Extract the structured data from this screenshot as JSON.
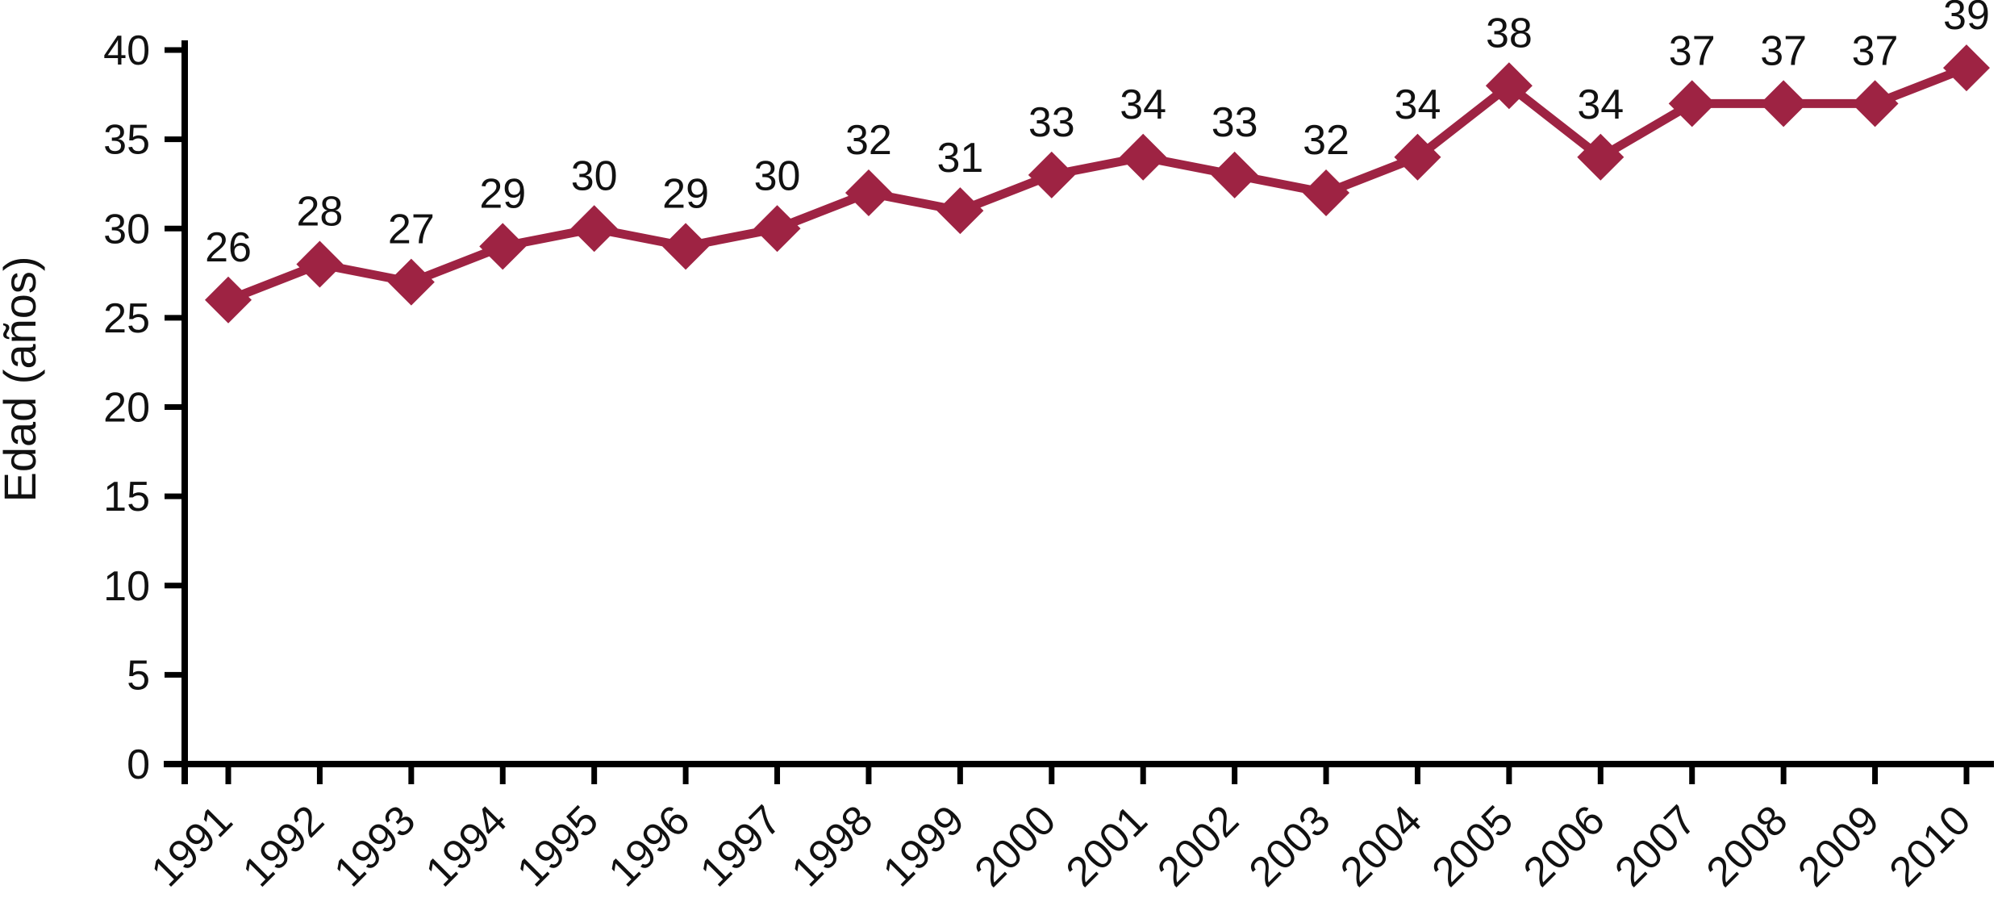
{
  "chart_data": {
    "type": "line",
    "title": "",
    "xlabel": "",
    "ylabel": "Edad (años)",
    "categories": [
      "1991",
      "1992",
      "1993",
      "1994",
      "1995",
      "1996",
      "1997",
      "1998",
      "1999",
      "2000",
      "2001",
      "2002",
      "2003",
      "2004",
      "2005",
      "2006",
      "2007",
      "2008",
      "2009",
      "2010"
    ],
    "series": [
      {
        "name": "Edad",
        "values": [
          26,
          28,
          27,
          29,
          30,
          29,
          30,
          32,
          31,
          33,
          34,
          33,
          32,
          34,
          38,
          34,
          37,
          37,
          37,
          39
        ]
      }
    ],
    "data_labels": [
      26,
      28,
      27,
      29,
      30,
      29,
      30,
      32,
      31,
      33,
      34,
      33,
      32,
      34,
      38,
      34,
      37,
      37,
      37,
      39
    ],
    "ylim": [
      0,
      40
    ],
    "yticks": [
      0,
      5,
      10,
      15,
      20,
      25,
      30,
      35,
      40
    ],
    "grid": false,
    "legend_position": "none",
    "marker": "diamond",
    "colors": {
      "line": "#9E2343",
      "marker": "#9E2343",
      "axis": "#000000",
      "text": "#111111",
      "background": "#FFFFFF"
    }
  }
}
